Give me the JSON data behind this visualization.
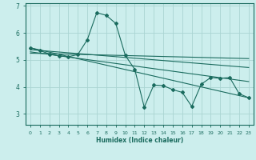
{
  "xlabel": "Humidex (Indice chaleur)",
  "bg_color": "#cceeed",
  "grid_color": "#aad4d2",
  "line_color": "#1a6b5e",
  "x_ticks": [
    0,
    1,
    2,
    3,
    4,
    5,
    6,
    7,
    8,
    9,
    10,
    11,
    12,
    13,
    14,
    15,
    16,
    17,
    18,
    19,
    20,
    21,
    22,
    23
  ],
  "y_ticks": [
    3,
    4,
    5,
    6,
    7
  ],
  "ylim": [
    2.6,
    7.1
  ],
  "xlim": [
    -0.5,
    23.5
  ],
  "series1_x": [
    0,
    1,
    2,
    3,
    4,
    5,
    6,
    7,
    8,
    9,
    10,
    11,
    12,
    13,
    14,
    15,
    16,
    17,
    18,
    19,
    20,
    21,
    22,
    23
  ],
  "series1_y": [
    5.45,
    5.35,
    5.22,
    5.15,
    5.12,
    5.2,
    5.75,
    6.75,
    6.65,
    6.35,
    5.17,
    4.65,
    3.25,
    4.07,
    4.05,
    3.9,
    3.8,
    3.28,
    4.1,
    4.35,
    4.32,
    4.35,
    3.75,
    3.6
  ],
  "line1_x": [
    0,
    23
  ],
  "line1_y": [
    5.45,
    3.6
  ],
  "line2_x": [
    0,
    23
  ],
  "line2_y": [
    5.38,
    4.72
  ],
  "line3_x": [
    0,
    23
  ],
  "line3_y": [
    5.3,
    4.2
  ],
  "line4_x": [
    0,
    23
  ],
  "line4_y": [
    5.25,
    5.05
  ],
  "xlabel_fontsize": 5.5,
  "tick_fontsize_x": 4.5,
  "tick_fontsize_y": 5.5
}
